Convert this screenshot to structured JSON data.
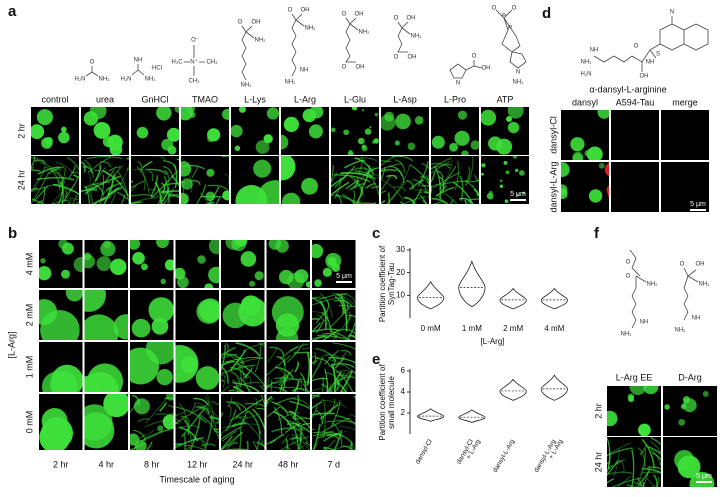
{
  "panel_a": {
    "label": "a",
    "columns": [
      "control",
      "urea",
      "GnHCl",
      "TMAO",
      "L-Lys",
      "L-Arg",
      "L-Glu",
      "L-Asp",
      "L-Pro",
      "ATP"
    ],
    "rows": [
      "2 hr",
      "24 hr"
    ],
    "scale_bar": "5 μm",
    "structures": [
      [
        "O",
        "H₂N",
        "NH₂"
      ],
      [
        "NH",
        "H₂N",
        "NH₂",
        "·HCl"
      ],
      [
        "O⁻",
        "H₃C",
        "N⁺",
        "CH₃",
        "CH₃"
      ],
      [
        "O",
        "OH",
        "NH₂",
        "NH₂"
      ],
      [
        "O",
        "OH",
        "NH₂",
        "NH",
        "NH₂"
      ],
      [
        "O",
        "OH",
        "NH₂",
        "O",
        "OH"
      ],
      [
        "O",
        "OH",
        "NH₂",
        "O",
        "OH"
      ],
      [
        "O",
        "OH",
        "N"
      ],
      [
        "O",
        "P",
        "O",
        "P",
        "N",
        "NH₂"
      ]
    ]
  },
  "panel_b": {
    "label": "b",
    "rows": [
      "4 mM",
      "2 mM",
      "1 mM",
      "0 mM"
    ],
    "columns": [
      "2 hr",
      "4 hr",
      "8 hr",
      "12 hr",
      "24 hr",
      "48 hr",
      "7 d"
    ],
    "row_axis_label": "[L-Arg]",
    "column_axis_label": "Timescale of aging",
    "scale_bar": "5 μm"
  },
  "panel_d": {
    "label": "d",
    "compound": "α-dansyl-L-arginine",
    "structure": [
      "N",
      "NH₂",
      "NH",
      "H₂N",
      "O",
      "OH",
      "NH",
      "S"
    ],
    "columns": [
      "dansyl",
      "A594-Tau",
      "merge"
    ],
    "rows": [
      "dansyl-Cl",
      "dansyl-L-Arg"
    ],
    "scale_bar": "5 μm"
  },
  "panel_f": {
    "label": "f",
    "structures": [
      [
        "O",
        "O",
        "NH₂",
        "NH",
        "NH₂"
      ],
      [
        "O",
        "OH",
        "NH₂",
        "NH",
        "NH₂"
      ]
    ],
    "columns": [
      "L-Arg EE",
      "D-Arg"
    ],
    "rows": [
      "2 hr",
      "24 hr"
    ],
    "scale_bar": "5 μm"
  },
  "chart_data": [
    {
      "type": "violin",
      "label": "c",
      "y_label": [
        "Partition coefficient of",
        "SynTag-Tau"
      ],
      "x_label": "[L-Arg]",
      "categories": [
        "0 mM",
        "1 mM",
        "2 mM",
        "4 mM"
      ],
      "values": [
        9,
        13.5,
        8,
        8
      ],
      "ranges": [
        [
          4,
          16
        ],
        [
          5,
          25
        ],
        [
          4,
          13
        ],
        [
          4,
          13
        ]
      ],
      "ylim": [
        0,
        30
      ],
      "yticks": [
        10,
        20,
        30
      ]
    },
    {
      "type": "violin",
      "label": "e",
      "y_label": [
        "Partition coefficient of",
        "small molecule"
      ],
      "categories": [
        [
          "dansyl-Cl"
        ],
        [
          "dansyl-Cl",
          "+ L-Arg"
        ],
        [
          "dansyl-L-Arg"
        ],
        [
          "dansyl-L-Arg",
          "+ L-Arg"
        ]
      ],
      "values": [
        1.7,
        1.6,
        4.1,
        4.3
      ],
      "ranges": [
        [
          1.2,
          2.4
        ],
        [
          1.1,
          2.3
        ],
        [
          3.2,
          5.2
        ],
        [
          3.2,
          5.6
        ]
      ],
      "ylim": [
        0,
        6
      ],
      "yticks": [
        2,
        4,
        6
      ]
    }
  ]
}
